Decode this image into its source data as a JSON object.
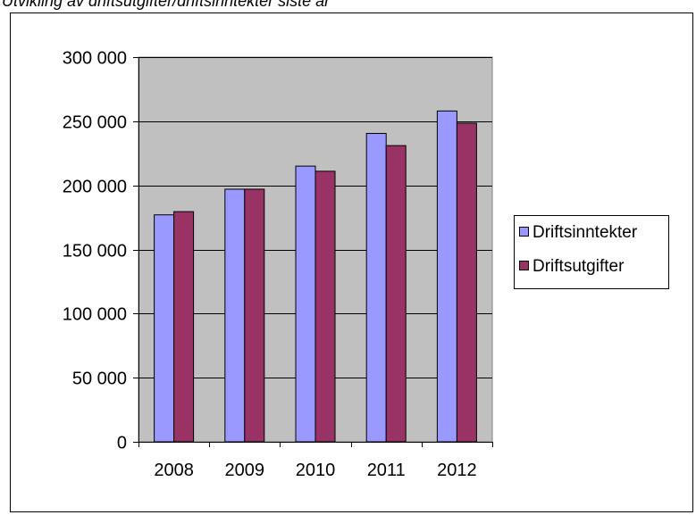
{
  "chart_data": {
    "type": "bar",
    "title": "Utvikling av driftsutgifter/driftsinntekter siste år",
    "categories": [
      "2008",
      "2009",
      "2010",
      "2011",
      "2012"
    ],
    "series": [
      {
        "name": "Driftsinntekter",
        "values": [
          177000,
          197000,
          215000,
          240500,
          258000
        ]
      },
      {
        "name": "Driftsutgifter",
        "values": [
          179500,
          197000,
          211000,
          231000,
          248500
        ]
      }
    ],
    "xlabel": "",
    "ylabel": "",
    "ylim": [
      0,
      300000
    ],
    "y_ticks": [
      {
        "value": 0,
        "label": "0"
      },
      {
        "value": 50000,
        "label": "50 000"
      },
      {
        "value": 100000,
        "label": "100 000"
      },
      {
        "value": 150000,
        "label": "150 000"
      },
      {
        "value": 200000,
        "label": "200 000"
      },
      {
        "value": 250000,
        "label": "250 000"
      },
      {
        "value": 300000,
        "label": "300 000"
      }
    ],
    "grid": true,
    "legend_position": "right",
    "colors": {
      "plot_background": "#C0C0C0",
      "series": [
        "#9999FF",
        "#993366"
      ]
    }
  }
}
